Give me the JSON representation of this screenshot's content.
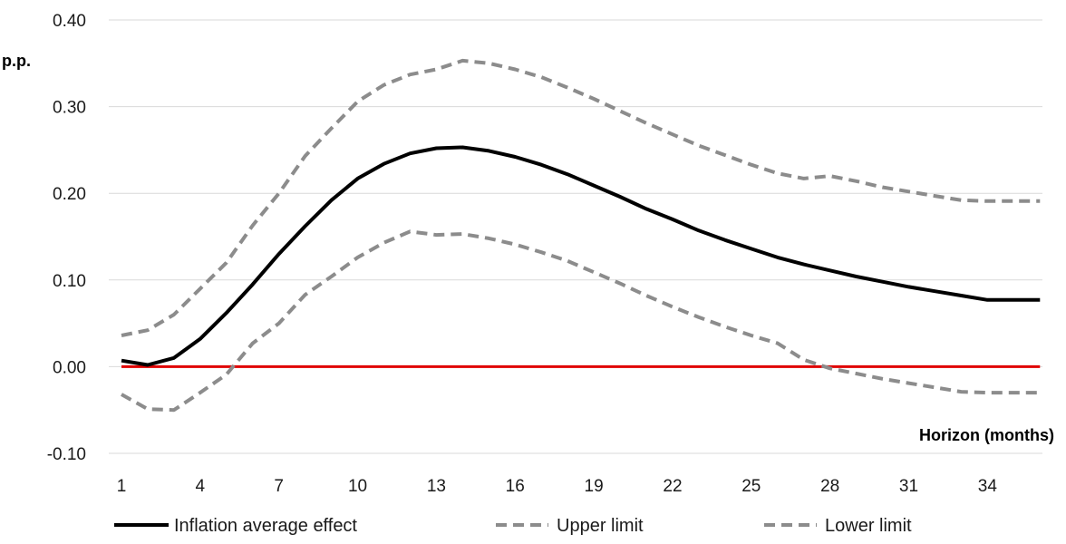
{
  "chart_data": {
    "type": "line",
    "title": "",
    "ylabel": "p.p.",
    "xlabel": "Horizon (months)",
    "ylim": [
      -0.1,
      0.4
    ],
    "yticks": [
      -0.1,
      0.0,
      0.1,
      0.2,
      0.3,
      0.4
    ],
    "ytick_labels": [
      "-0.10",
      "0.00",
      "0.10",
      "0.20",
      "0.30",
      "0.40"
    ],
    "xlim": [
      1,
      36
    ],
    "xticks": [
      1,
      4,
      7,
      10,
      13,
      16,
      19,
      22,
      25,
      28,
      31,
      34
    ],
    "xtick_labels": [
      "1",
      "4",
      "7",
      "10",
      "13",
      "16",
      "19",
      "22",
      "25",
      "28",
      "31",
      "34"
    ],
    "grid": "horizontal",
    "legend_position": "bottom",
    "x": [
      1,
      2,
      3,
      4,
      5,
      6,
      7,
      8,
      9,
      10,
      11,
      12,
      13,
      14,
      15,
      16,
      17,
      18,
      19,
      20,
      21,
      22,
      23,
      24,
      25,
      26,
      27,
      28,
      29,
      30,
      31,
      32,
      33,
      34,
      35,
      36
    ],
    "series": [
      {
        "name": "Inflation average effect",
        "style": "solid",
        "color": "#000000",
        "values": [
          0.007,
          0.002,
          0.01,
          0.032,
          0.062,
          0.095,
          0.13,
          0.162,
          0.192,
          0.217,
          0.234,
          0.246,
          0.252,
          0.253,
          0.249,
          0.242,
          0.233,
          0.222,
          0.209,
          0.196,
          0.182,
          0.17,
          0.157,
          0.146,
          0.136,
          0.126,
          0.118,
          0.111,
          0.104,
          0.098,
          0.092,
          0.087,
          0.082,
          0.077,
          0.077,
          0.077
        ]
      },
      {
        "name": "Upper limit",
        "style": "dashed",
        "color": "#8c8c8c",
        "values": [
          0.036,
          0.042,
          0.06,
          0.09,
          0.12,
          0.163,
          0.2,
          0.243,
          0.275,
          0.306,
          0.325,
          0.337,
          0.343,
          0.353,
          0.35,
          0.343,
          0.334,
          0.322,
          0.309,
          0.295,
          0.281,
          0.268,
          0.255,
          0.244,
          0.233,
          0.223,
          0.217,
          0.22,
          0.214,
          0.207,
          0.202,
          0.197,
          0.192,
          0.191,
          0.191,
          0.191
        ]
      },
      {
        "name": "Lower limit",
        "style": "dashed",
        "color": "#8c8c8c",
        "values": [
          -0.032,
          -0.049,
          -0.05,
          -0.03,
          -0.009,
          0.027,
          0.05,
          0.083,
          0.104,
          0.126,
          0.143,
          0.156,
          0.152,
          0.153,
          0.148,
          0.141,
          0.132,
          0.122,
          0.109,
          0.096,
          0.082,
          0.069,
          0.057,
          0.046,
          0.036,
          0.027,
          0.008,
          -0.002,
          -0.008,
          -0.014,
          -0.019,
          -0.024,
          -0.029,
          -0.03,
          -0.03,
          -0.03
        ]
      },
      {
        "name": "Zero line",
        "style": "solid",
        "color": "#e00000",
        "values": [
          0,
          0,
          0,
          0,
          0,
          0,
          0,
          0,
          0,
          0,
          0,
          0,
          0,
          0,
          0,
          0,
          0,
          0,
          0,
          0,
          0,
          0,
          0,
          0,
          0,
          0,
          0,
          0,
          0,
          0,
          0,
          0,
          0,
          0,
          0,
          0
        ]
      }
    ],
    "legend": [
      "Inflation average effect",
      "Upper limit",
      "Lower limit"
    ]
  }
}
